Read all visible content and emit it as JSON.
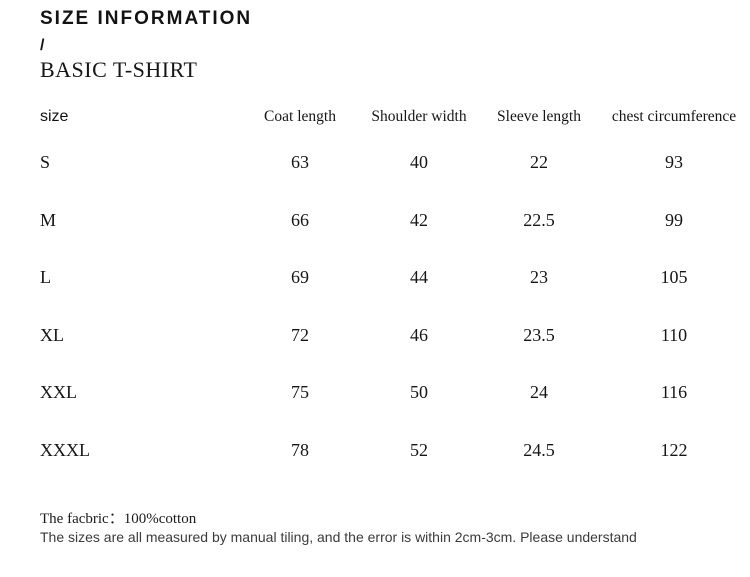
{
  "header": {
    "title": "SIZE INFORMATION",
    "separator": "/",
    "subtitle": "BASIC T-SHIRT"
  },
  "size_table": {
    "columns": [
      "size",
      "Coat length",
      "Shoulder width",
      "Sleeve length",
      "chest circumference"
    ],
    "rows": [
      {
        "size": "S",
        "coat_length": "63",
        "shoulder_width": "40",
        "sleeve_length": "22",
        "chest_circumference": "93"
      },
      {
        "size": "M",
        "coat_length": "66",
        "shoulder_width": "42",
        "sleeve_length": "22.5",
        "chest_circumference": "99"
      },
      {
        "size": "L",
        "coat_length": "69",
        "shoulder_width": "44",
        "sleeve_length": "23",
        "chest_circumference": "105"
      },
      {
        "size": "XL",
        "coat_length": "72",
        "shoulder_width": "46",
        "sleeve_length": "23.5",
        "chest_circumference": "110"
      },
      {
        "size": "XXL",
        "coat_length": "75",
        "shoulder_width": "50",
        "sleeve_length": "24",
        "chest_circumference": "116"
      },
      {
        "size": "XXXL",
        "coat_length": "78",
        "shoulder_width": "52",
        "sleeve_length": "24.5",
        "chest_circumference": "122"
      }
    ]
  },
  "footer": {
    "fabric_note": "The facbric：100%cotton",
    "measurement_note": "The sizes are all measured by manual tiling, and the error is within 2cm-3cm. Please understand"
  },
  "colors": {
    "background": "#ffffff",
    "text_primary": "#111111",
    "text_secondary": "#3b3b3b"
  }
}
